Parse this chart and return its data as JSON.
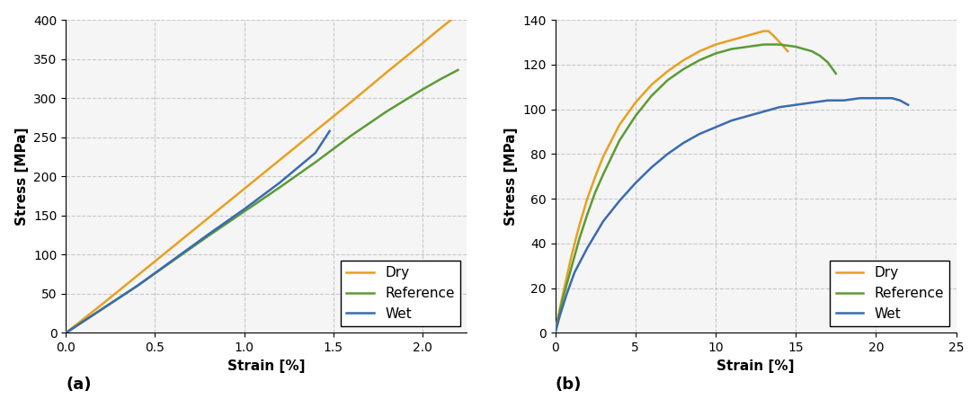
{
  "plot_a": {
    "xlabel": "Strain [%]",
    "ylabel": "Stress [MPa]",
    "label_a": "(a)",
    "xlim": [
      0.0,
      2.25
    ],
    "ylim": [
      0,
      400
    ],
    "xticks": [
      0.0,
      0.5,
      1.0,
      1.5,
      2.0
    ],
    "yticks": [
      0,
      50,
      100,
      150,
      200,
      250,
      300,
      350,
      400
    ],
    "dry_color": "#E8A020",
    "ref_color": "#5B9B35",
    "wet_color": "#3A6BAF",
    "dry_x": [
      0.0,
      0.1,
      0.2,
      0.4,
      0.6,
      0.8,
      1.0,
      1.2,
      1.4,
      1.6,
      1.8,
      2.0,
      2.1,
      2.2
    ],
    "dry_y": [
      0,
      18,
      36,
      73,
      110,
      147,
      184,
      221,
      258,
      295,
      333,
      370,
      389,
      407
    ],
    "ref_x": [
      0.0,
      0.1,
      0.2,
      0.4,
      0.6,
      0.8,
      1.0,
      1.2,
      1.4,
      1.6,
      1.8,
      2.0,
      2.1,
      2.2
    ],
    "ref_y": [
      0,
      15,
      30,
      60,
      92,
      124,
      155,
      186,
      218,
      252,
      283,
      311,
      324,
      336
    ],
    "wet_x": [
      0.0,
      0.1,
      0.2,
      0.4,
      0.6,
      0.8,
      1.0,
      1.2,
      1.4,
      1.48
    ],
    "wet_y": [
      0,
      15,
      30,
      60,
      93,
      126,
      158,
      192,
      230,
      258
    ]
  },
  "plot_b": {
    "xlabel": "Strain [%]",
    "ylabel": "Stress [MPa]",
    "label_b": "(b)",
    "xlim": [
      0.0,
      25.0
    ],
    "ylim": [
      0,
      140
    ],
    "xticks": [
      0.0,
      5.0,
      10.0,
      15.0,
      20.0,
      25.0
    ],
    "yticks": [
      0,
      20,
      40,
      60,
      80,
      100,
      120,
      140
    ],
    "dry_color": "#E8A020",
    "ref_color": "#5B9B35",
    "wet_color": "#3A6BAF",
    "dry_x": [
      0.0,
      0.2,
      0.5,
      1.0,
      1.5,
      2.0,
      2.5,
      3.0,
      4.0,
      5.0,
      6.0,
      7.0,
      8.0,
      9.0,
      10.0,
      11.0,
      12.0,
      12.5,
      13.0,
      13.3,
      13.6,
      14.0,
      14.5
    ],
    "dry_y": [
      0,
      8,
      18,
      34,
      48,
      60,
      70,
      79,
      93,
      103,
      111,
      117,
      122,
      126,
      129,
      131,
      133,
      134,
      135,
      135,
      133,
      130,
      126
    ],
    "ref_x": [
      0.0,
      0.2,
      0.5,
      1.0,
      1.5,
      2.0,
      2.5,
      3.0,
      4.0,
      5.0,
      6.0,
      7.0,
      8.0,
      9.0,
      10.0,
      11.0,
      12.0,
      13.0,
      14.0,
      15.0,
      16.0,
      16.5,
      17.0,
      17.5
    ],
    "ref_y": [
      0,
      7,
      16,
      29,
      42,
      53,
      63,
      71,
      86,
      97,
      106,
      113,
      118,
      122,
      125,
      127,
      128,
      129,
      129,
      128,
      126,
      124,
      121,
      116
    ],
    "wet_x": [
      0.0,
      0.3,
      0.7,
      1.2,
      2.0,
      3.0,
      4.0,
      5.0,
      6.0,
      7.0,
      8.0,
      9.0,
      10.0,
      11.0,
      12.0,
      13.0,
      14.0,
      15.0,
      16.0,
      17.0,
      18.0,
      19.0,
      20.0,
      21.0,
      21.5,
      22.0
    ],
    "wet_y": [
      0,
      8,
      17,
      27,
      38,
      50,
      59,
      67,
      74,
      80,
      85,
      89,
      92,
      95,
      97,
      99,
      101,
      102,
      103,
      104,
      104,
      105,
      105,
      105,
      104,
      102
    ]
  },
  "legend_labels": [
    "Dry",
    "Reference",
    "Wet"
  ],
  "grid_color": "#c8c8c8",
  "grid_linestyle": "--",
  "linewidth": 1.8,
  "bg_color": "#f5f5f5",
  "fontsize_label": 11,
  "fontsize_tick": 10,
  "fontsize_legend": 11,
  "fontsize_sublabel": 13
}
